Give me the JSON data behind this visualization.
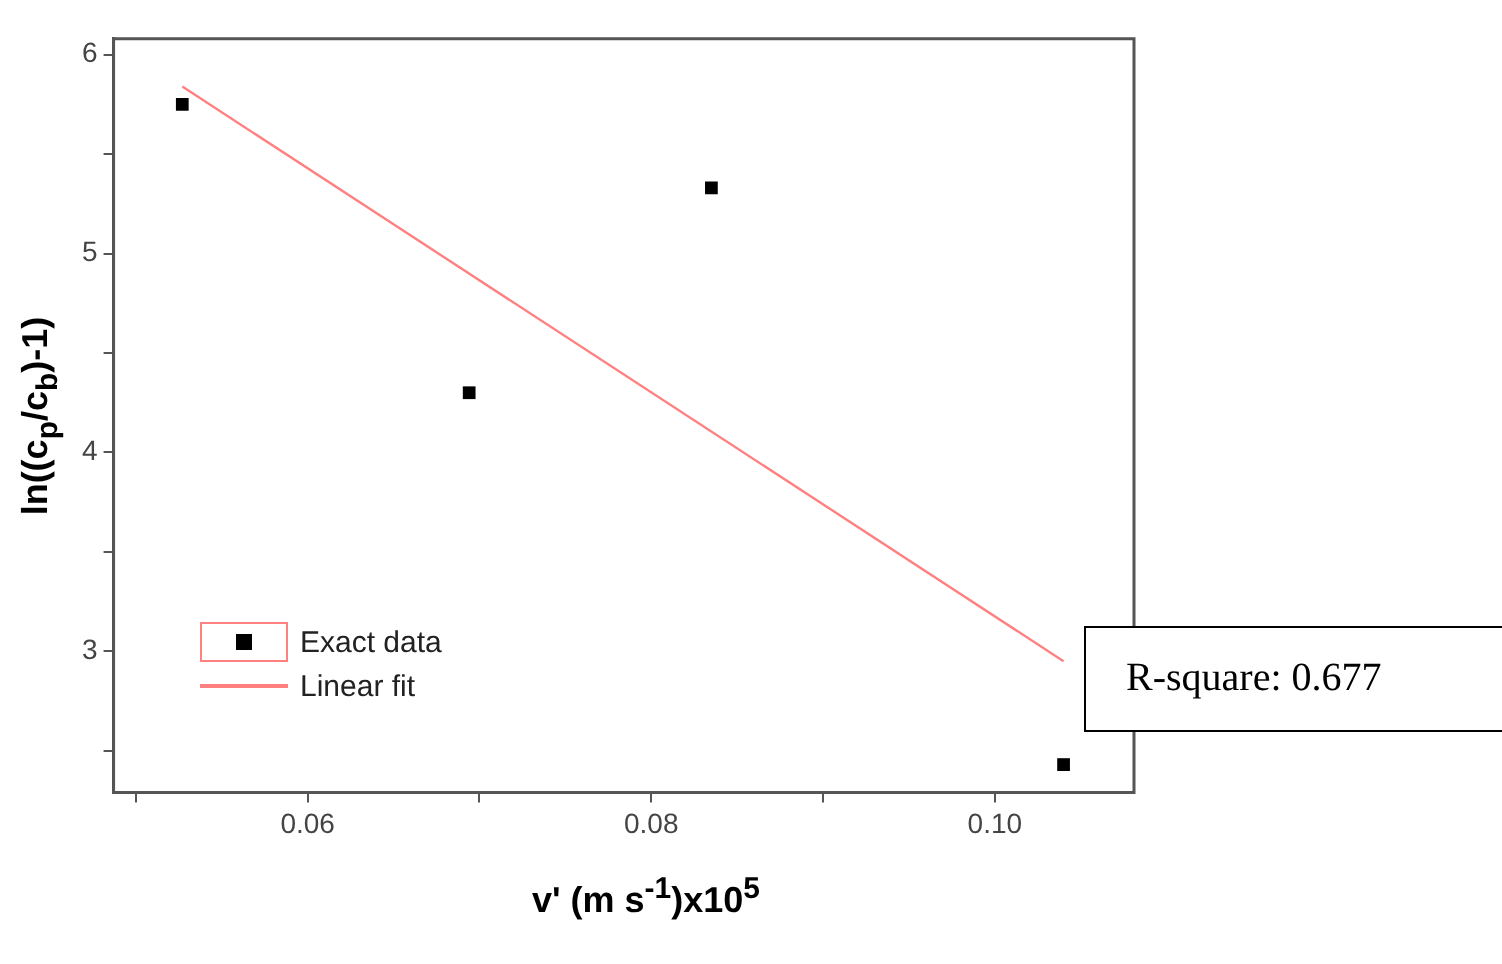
{
  "chart_data": {
    "type": "scatter",
    "xlabel": "v' (m s$^{-1}$)x10$^{5}$",
    "ylabel": "ln((c$_{p}$/c$_{b}$)-1)",
    "xlim": [
      0.0487,
      0.1081
    ],
    "ylim": [
      2.29,
      6.08
    ],
    "xticks": [
      {
        "value": 0.05,
        "label": null
      },
      {
        "value": 0.06,
        "label": "0.06"
      },
      {
        "value": 0.07,
        "label": null
      },
      {
        "value": 0.08,
        "label": "0.08"
      },
      {
        "value": 0.09,
        "label": null
      },
      {
        "value": 0.1,
        "label": "0.10"
      }
    ],
    "yticks": [
      {
        "value": 2.5,
        "label": null
      },
      3,
      {
        "value": 3.5,
        "label": null
      },
      4,
      {
        "value": 4.5,
        "label": null
      },
      5,
      {
        "value": 5.5,
        "label": null
      },
      6
    ],
    "series": [
      {
        "name": "Exact data",
        "color": "#000000",
        "marker": "square",
        "x": [
          0.0527,
          0.0694,
          0.0835,
          0.104
        ],
        "values": [
          5.75,
          4.3,
          5.33,
          2.43
        ]
      },
      {
        "name": "Linear fit",
        "type": "line",
        "color": "#ff8080",
        "marker": "none",
        "x": [
          0.0527,
          0.104
        ],
        "values": [
          5.84,
          2.95
        ]
      }
    ],
    "legend": "bottom left",
    "annotations": [
      "R-square: 0.677"
    ]
  }
}
